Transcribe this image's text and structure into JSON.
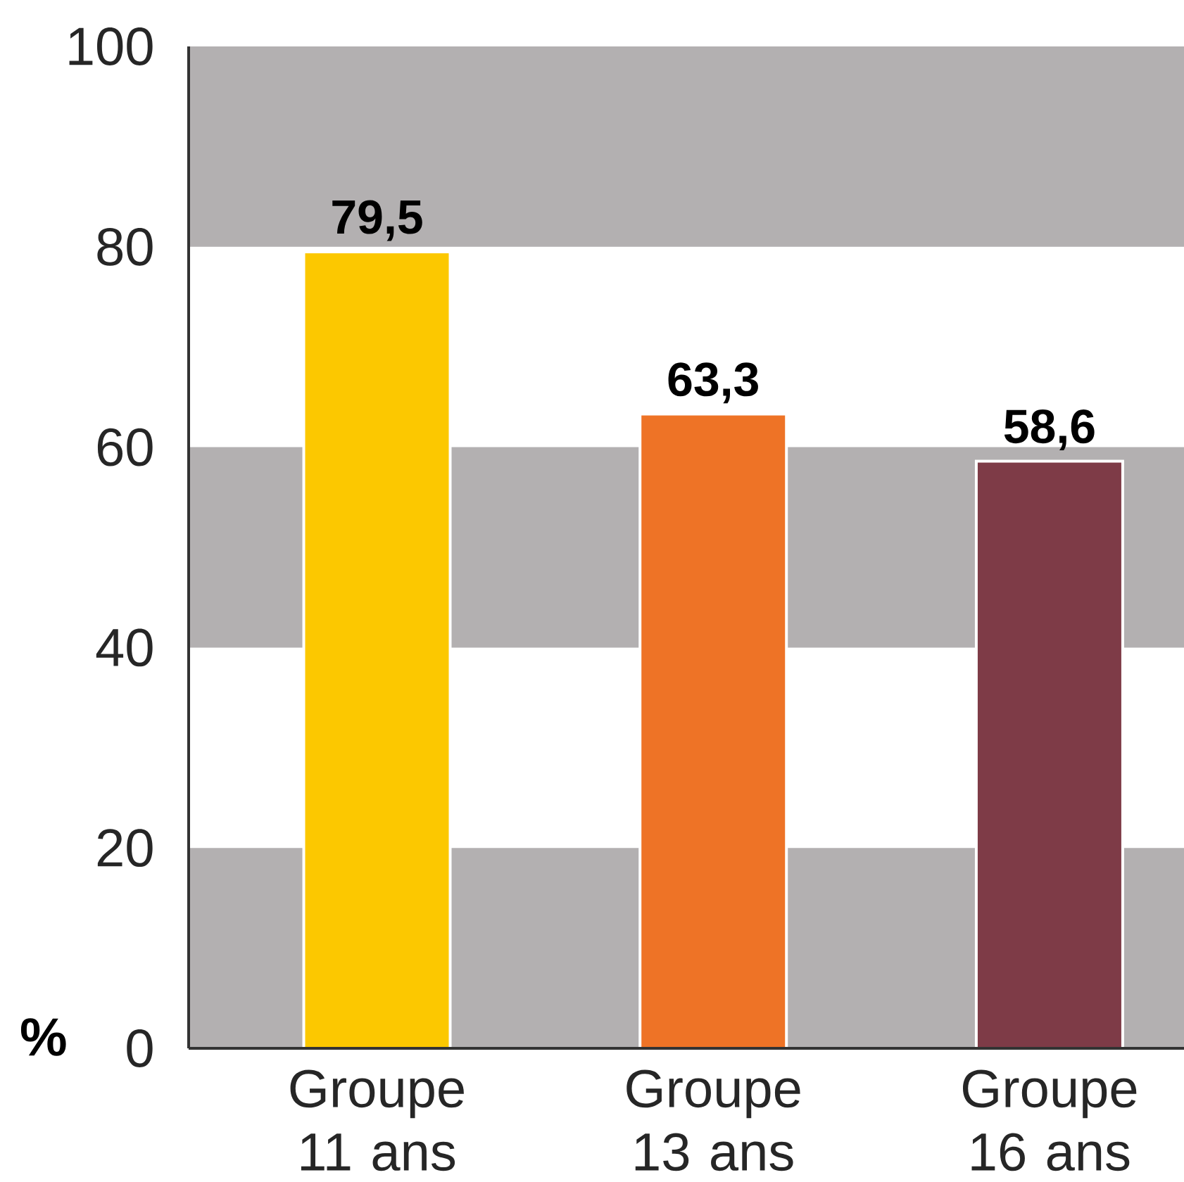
{
  "chart_data": {
    "type": "bar",
    "ylabel": "%",
    "categories": [
      "Groupe 11 ans",
      "Groupe 13 ans",
      "Groupe 16 ans"
    ],
    "values": [
      79.5,
      63.3,
      58.6
    ],
    "colors": [
      "#fcc800",
      "#ee7326",
      "#7e3b47"
    ],
    "value_labels": [
      "79,5",
      "63,3",
      "58,6"
    ],
    "ylim": [
      0,
      100
    ],
    "yticks": [
      0,
      20,
      40,
      60,
      80,
      100
    ],
    "bands": [
      {
        "axis": "y",
        "from": 0,
        "to": 20,
        "color": "#b3b0b1"
      },
      {
        "axis": "y",
        "from": 40,
        "to": 60,
        "color": "#b3b0b1"
      },
      {
        "axis": "y",
        "from": 80,
        "to": 100,
        "color": "#b3b0b1"
      }
    ]
  }
}
